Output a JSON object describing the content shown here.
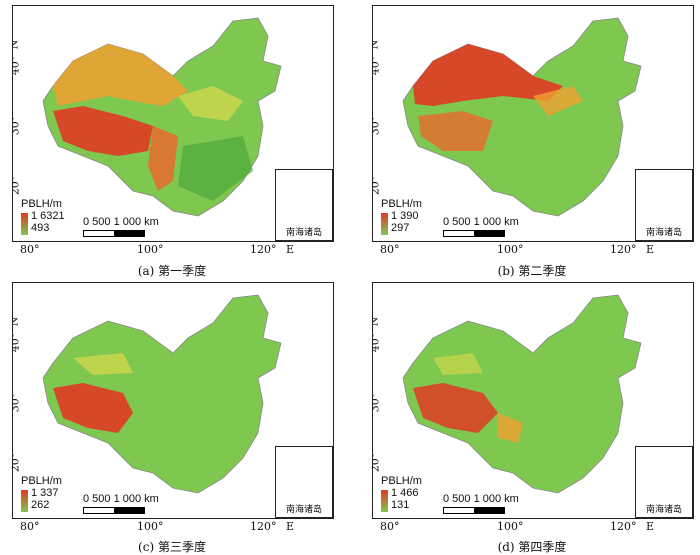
{
  "axis_labels": {
    "lat": [
      "40°",
      "30°",
      "20°"
    ],
    "lat_dir": "N",
    "lon": [
      "80°",
      "100°",
      "120°"
    ],
    "lon_dir": "E"
  },
  "legend_title": "PBLH/m",
  "scale": {
    "text": "0 500 1 000 km"
  },
  "inset_label": "南海诸岛",
  "panels": [
    {
      "caption": "(a) 第一季度",
      "max": "1 6321",
      "min": "493"
    },
    {
      "caption": "(b) 第二季度",
      "max": "1 390",
      "min": "297"
    },
    {
      "caption": "(c) 第三季度",
      "max": "1 337",
      "min": "262"
    },
    {
      "caption": "(d) 第四季度",
      "max": "1 466",
      "min": "131"
    }
  ],
  "colors": {
    "high": "#e03a24",
    "mid_high": "#f0a030",
    "mid": "#d8d84a",
    "low": "#7ec850",
    "low_deep": "#4ea83a"
  }
}
